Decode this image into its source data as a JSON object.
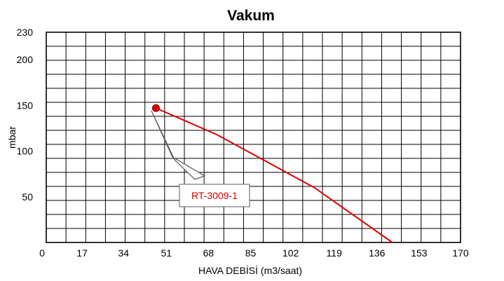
{
  "chart_data": {
    "type": "line",
    "title": "Vakum",
    "xlabel": "HAVA DEBİSİ (m3/saat)",
    "ylabel": "mbar",
    "xlim": [
      0,
      170
    ],
    "ylim": [
      0,
      230
    ],
    "x_ticks": [
      0,
      17,
      34,
      51,
      68,
      85,
      102,
      119,
      136,
      153,
      170
    ],
    "y_ticks": [
      50,
      100,
      150,
      200,
      230
    ],
    "grid": true,
    "series": [
      {
        "name": "RT-3009-1",
        "color": "#e00000",
        "x": [
          45,
          70,
          110,
          142
        ],
        "y": [
          147,
          118,
          60,
          0
        ]
      }
    ],
    "marker": {
      "x": 45,
      "y": 147,
      "color": "#e00000"
    },
    "annotation": {
      "text": "RT-3009-1",
      "color": "#e00000"
    }
  }
}
